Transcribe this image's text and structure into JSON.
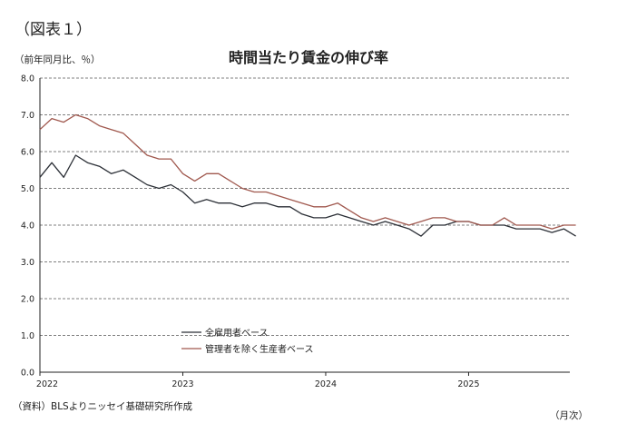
{
  "figure_label": "（図表１）",
  "unit_label": "（前年同月比、％）",
  "source": "（資料）BLSよりニッセイ基礎研究所作成",
  "x_unit": "（月次）",
  "chart_data": {
    "type": "line",
    "title": "時間当たり賃金の伸び率",
    "ylim": [
      0,
      8
    ],
    "yticks": [
      "0.0",
      "1.0",
      "2.0",
      "3.0",
      "4.0",
      "5.0",
      "6.0",
      "7.0",
      "8.0"
    ],
    "xticks": [
      "2022",
      "2023",
      "2024",
      "2025"
    ],
    "x_start": "2022-01",
    "grid": true,
    "legend_position": "lower-left",
    "series": [
      {
        "name": "全雇用者ベース",
        "color": "#2b2f36",
        "values": [
          5.3,
          5.7,
          5.3,
          5.9,
          5.7,
          5.6,
          5.4,
          5.5,
          5.3,
          5.1,
          5.0,
          5.1,
          4.9,
          4.6,
          4.7,
          4.6,
          4.6,
          4.5,
          4.6,
          4.6,
          4.5,
          4.5,
          4.3,
          4.2,
          4.2,
          4.3,
          4.2,
          4.1,
          4.0,
          4.1,
          4.0,
          3.9,
          3.7,
          4.0,
          4.0,
          4.1,
          4.1,
          4.0,
          4.0,
          4.0,
          3.9,
          3.9,
          3.9,
          3.8,
          3.9,
          3.7
        ]
      },
      {
        "name": "管理者を除く生産者ベース",
        "color": "#a0584e",
        "values": [
          6.6,
          6.9,
          6.8,
          7.0,
          6.9,
          6.7,
          6.6,
          6.5,
          6.2,
          5.9,
          5.8,
          5.8,
          5.4,
          5.2,
          5.4,
          5.4,
          5.2,
          5.0,
          4.9,
          4.9,
          4.8,
          4.7,
          4.6,
          4.5,
          4.5,
          4.6,
          4.4,
          4.2,
          4.1,
          4.2,
          4.1,
          4.0,
          4.1,
          4.2,
          4.2,
          4.1,
          4.1,
          4.0,
          4.0,
          4.2,
          4.0,
          4.0,
          4.0,
          3.9,
          4.0,
          4.0
        ]
      }
    ]
  }
}
